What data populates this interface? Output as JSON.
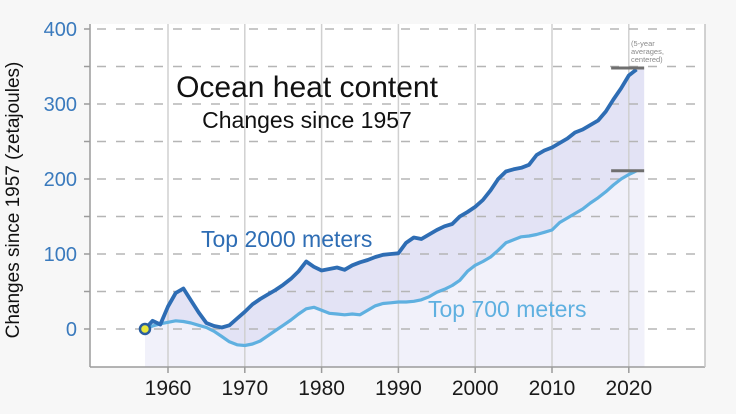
{
  "window": {
    "background": "#f7f7f7",
    "plot_background": "#ffffff"
  },
  "chart_data": {
    "type": "line",
    "title": "Ocean heat content",
    "subtitle": "Changes since 1957",
    "ylabel": "Changes since 1957 (zetajoules)",
    "annotation_lines": [
      "(5-year",
      "averages,",
      "centered)"
    ],
    "x_ticks": [
      1960,
      1970,
      1980,
      1990,
      2000,
      2010,
      2020
    ],
    "y_tick_labels": [
      0,
      100,
      200,
      300,
      400
    ],
    "y_grid_values": [
      0,
      50,
      100,
      150,
      200,
      250,
      300,
      350,
      400
    ],
    "x_axis_range": [
      1950,
      2030
    ],
    "y_axis_range": [
      -51,
      400
    ],
    "grid": {
      "horizontal": "dashed",
      "vertical": "solid"
    },
    "year_start": 1957,
    "year_step": 1,
    "series": [
      {
        "name": "Top 2000 meters",
        "color": "#2e6db4",
        "fill_below": "#e3e3f5",
        "values": [
          0,
          11,
          6,
          30,
          48,
          54,
          38,
          22,
          8,
          4,
          2,
          5,
          14,
          23,
          33,
          40,
          46,
          52,
          59,
          67,
          77,
          90,
          83,
          78,
          80,
          82,
          79,
          85,
          89,
          92,
          96,
          99,
          100,
          101,
          115,
          122,
          120,
          126,
          132,
          137,
          140,
          150,
          156,
          163,
          172,
          185,
          200,
          210,
          213,
          215,
          219,
          232,
          238,
          242,
          248,
          254,
          262,
          266,
          272,
          278,
          290,
          306,
          321,
          338,
          346
        ]
      },
      {
        "name": "Top 700 meters",
        "color": "#5fb0e0",
        "fill_below": "#f1f1fa",
        "values": [
          0,
          4,
          7,
          9,
          11,
          10,
          8,
          5,
          2,
          -3,
          -10,
          -17,
          -21,
          -22,
          -20,
          -16,
          -9,
          -2,
          5,
          12,
          20,
          27,
          29,
          25,
          21,
          20,
          19,
          20,
          19,
          25,
          31,
          34,
          35,
          36,
          36,
          37,
          39,
          43,
          49,
          53,
          58,
          65,
          77,
          85,
          90,
          96,
          105,
          115,
          119,
          123,
          124,
          126,
          129,
          132,
          142,
          148,
          154,
          160,
          168,
          175,
          183,
          192,
          200,
          206,
          211
        ]
      }
    ],
    "end_bars": [
      {
        "series": "Top 2000 meters",
        "value": 348,
        "year_start": 2017.7,
        "year_end": 2022
      },
      {
        "series": "Top 700 meters",
        "value": 211,
        "year_start": 2017.7,
        "year_end": 2022
      }
    ],
    "start_marker": {
      "year": 1957,
      "value": 0,
      "fill": "#e9e73a",
      "stroke": "#2a5d9f"
    },
    "colors": {
      "axis": "#9b9b9b",
      "right_border": "#c4c4c4",
      "vertical_grid": "#d0d0d0",
      "dashed_grid": "#b5b5b5",
      "y_tick_label": "#3a7abd",
      "x_tick_label": "#1a1a1a",
      "end_bar": "#6f6f6f",
      "annotation": "#8a8a8a"
    }
  }
}
